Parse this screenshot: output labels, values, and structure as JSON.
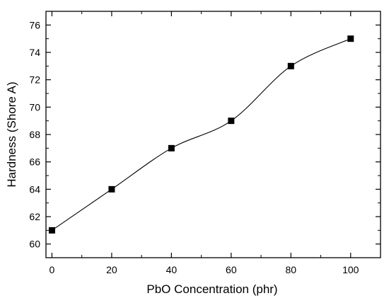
{
  "chart_data": {
    "type": "line",
    "title": "",
    "xlabel": "PbO Concentration (phr)",
    "ylabel": "Hardness (Shore A)",
    "xlim": [
      -2,
      110
    ],
    "ylim": [
      59,
      77
    ],
    "x_ticks": [
      0,
      20,
      40,
      60,
      80,
      100
    ],
    "y_ticks": [
      60,
      62,
      64,
      66,
      68,
      70,
      72,
      74,
      76
    ],
    "grid": false,
    "legend": "none",
    "marker": "square",
    "line_style": "smooth",
    "colors": {
      "line": "#000000",
      "marker": "#000000",
      "axis": "#000000"
    },
    "series": [
      {
        "x": [
          0,
          20,
          40,
          60,
          80,
          100
        ],
        "values": [
          61,
          64,
          67,
          69,
          73,
          75
        ]
      }
    ]
  }
}
